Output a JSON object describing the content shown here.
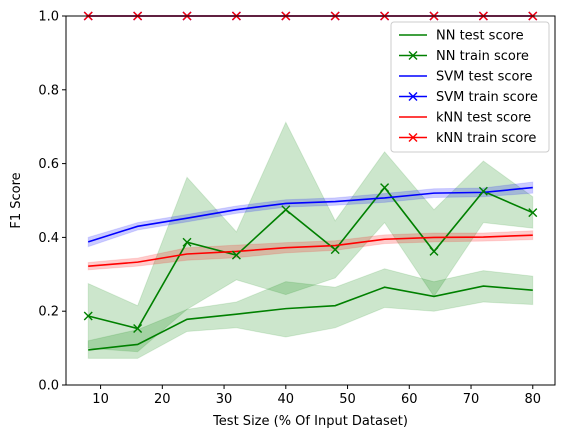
{
  "chart_data": {
    "type": "line",
    "title": "",
    "xlabel": "Test Size (% Of Input Dataset)",
    "ylabel": "F1 Score",
    "xlim": [
      4.4,
      83.6
    ],
    "ylim": [
      0.0,
      1.0
    ],
    "xticks": [
      "10",
      "20",
      "30",
      "40",
      "50",
      "60",
      "70",
      "80"
    ],
    "yticks": [
      "0.0",
      "0.2",
      "0.4",
      "0.6",
      "0.8",
      "1.0"
    ],
    "grid": false,
    "legend_position": "upper-right",
    "x": [
      8,
      16,
      24,
      32,
      40,
      48,
      56,
      64,
      72,
      80
    ],
    "series": [
      {
        "name": "NN test score",
        "color": "#008000",
        "marker": "none",
        "values": [
          0.095,
          0.11,
          0.178,
          0.192,
          0.207,
          0.215,
          0.265,
          0.24,
          0.268,
          0.257
        ],
        "band_lower": [
          0.072,
          0.072,
          0.145,
          0.155,
          0.13,
          0.155,
          0.21,
          0.2,
          0.225,
          0.218
        ],
        "band_upper": [
          0.12,
          0.15,
          0.205,
          0.225,
          0.28,
          0.265,
          0.315,
          0.28,
          0.31,
          0.295
        ]
      },
      {
        "name": "NN train score",
        "color": "#008000",
        "marker": "x",
        "values": [
          0.187,
          0.153,
          0.387,
          0.352,
          0.475,
          0.367,
          0.535,
          0.362,
          0.525,
          0.467
        ],
        "band_lower": [
          0.1,
          0.09,
          0.205,
          0.285,
          0.245,
          0.29,
          0.44,
          0.24,
          0.44,
          0.425
        ],
        "band_upper": [
          0.275,
          0.215,
          0.563,
          0.415,
          0.712,
          0.445,
          0.632,
          0.475,
          0.607,
          0.51
        ]
      },
      {
        "name": "SVM test score",
        "color": "#0000ff",
        "marker": "none",
        "values": [
          0.388,
          0.43,
          0.452,
          0.475,
          0.492,
          0.497,
          0.507,
          0.52,
          0.522,
          0.535
        ],
        "band_lower": [
          0.375,
          0.42,
          0.442,
          0.465,
          0.482,
          0.487,
          0.495,
          0.508,
          0.51,
          0.52
        ],
        "band_upper": [
          0.4,
          0.44,
          0.462,
          0.485,
          0.502,
          0.507,
          0.519,
          0.532,
          0.534,
          0.55
        ]
      },
      {
        "name": "SVM train score",
        "color": "#0000ff",
        "marker": "x",
        "values": [
          1.0,
          1.0,
          1.0,
          1.0,
          1.0,
          1.0,
          1.0,
          1.0,
          1.0,
          1.0
        ],
        "band_lower": [
          1.0,
          1.0,
          1.0,
          1.0,
          1.0,
          1.0,
          1.0,
          1.0,
          1.0,
          1.0
        ],
        "band_upper": [
          1.0,
          1.0,
          1.0,
          1.0,
          1.0,
          1.0,
          1.0,
          1.0,
          1.0,
          1.0
        ]
      },
      {
        "name": "kNN test score",
        "color": "#ff0000",
        "marker": "none",
        "values": [
          0.322,
          0.333,
          0.355,
          0.362,
          0.372,
          0.378,
          0.395,
          0.4,
          0.401,
          0.406
        ],
        "band_lower": [
          0.312,
          0.322,
          0.338,
          0.345,
          0.358,
          0.365,
          0.383,
          0.388,
          0.39,
          0.394
        ],
        "band_upper": [
          0.332,
          0.344,
          0.372,
          0.379,
          0.386,
          0.391,
          0.407,
          0.412,
          0.412,
          0.418
        ]
      },
      {
        "name": "kNN train score",
        "color": "#ff0000",
        "marker": "x",
        "values": [
          1.0,
          1.0,
          1.0,
          1.0,
          1.0,
          1.0,
          1.0,
          1.0,
          1.0,
          1.0
        ],
        "band_lower": [
          1.0,
          1.0,
          1.0,
          1.0,
          1.0,
          1.0,
          1.0,
          1.0,
          1.0,
          1.0
        ],
        "band_upper": [
          1.0,
          1.0,
          1.0,
          1.0,
          1.0,
          1.0,
          1.0,
          1.0,
          1.0,
          1.0
        ]
      }
    ]
  }
}
